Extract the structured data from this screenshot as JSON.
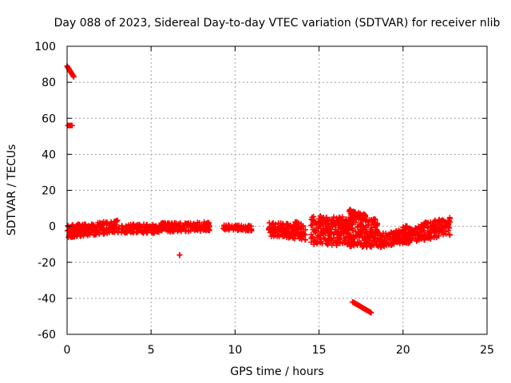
{
  "chart_data": {
    "type": "scatter",
    "title": "Day 088 of 2023, Sidereal Day-to-day VTEC variation (SDTVAR) for receiver nlib",
    "xlabel": "GPS time / hours",
    "ylabel": "SDTVAR / TECUs",
    "xlim": [
      0,
      25
    ],
    "ylim": [
      -60,
      100
    ],
    "xticks": [
      0,
      5,
      10,
      15,
      20,
      25
    ],
    "yticks": [
      -60,
      -40,
      -20,
      0,
      20,
      40,
      60,
      80,
      100
    ],
    "grid": true,
    "marker": "+",
    "color": "#ff0000",
    "clusters": [
      {
        "x": [
          0.0,
          0.4
        ],
        "y": [
          89,
          83
        ],
        "kind": "line"
      },
      {
        "x": [
          0.05,
          0.3
        ],
        "y": [
          56,
          56
        ],
        "kind": "line"
      },
      {
        "x": [
          0.0,
          3.0
        ],
        "y_center": [
          -3,
          0
        ],
        "spread": 3.5,
        "kind": "band"
      },
      {
        "x": [
          3.0,
          5.5
        ],
        "y_center": [
          -1,
          -1.5
        ],
        "spread": 2.5,
        "kind": "band"
      },
      {
        "x": [
          5.5,
          7.2
        ],
        "y_center": [
          -0.5,
          -0.5
        ],
        "spread": 2.5,
        "kind": "band"
      },
      {
        "x": [
          7.2,
          8.5
        ],
        "y_center": [
          -0.5,
          0
        ],
        "spread": 2.5,
        "kind": "band"
      },
      {
        "x": [
          9.3,
          11.0
        ],
        "y_center": [
          -0.5,
          -1
        ],
        "spread": 1.5,
        "kind": "band"
      },
      {
        "x": [
          12.0,
          13.5
        ],
        "y_center": [
          -2,
          -2.5
        ],
        "spread": 4,
        "kind": "band"
      },
      {
        "x": [
          13.5,
          14.2
        ],
        "y_center": [
          -2,
          -3
        ],
        "spread": 5,
        "kind": "band"
      },
      {
        "x": [
          14.5,
          17.0
        ],
        "y_center": [
          -2,
          -3
        ],
        "spread": 8,
        "kind": "band"
      },
      {
        "x": [
          16.5,
          18.5
        ],
        "y_center": [
          -3,
          -4
        ],
        "spread": 8,
        "kind": "band"
      },
      {
        "x": [
          16.8,
          17.8
        ],
        "y_center": [
          8,
          5
        ],
        "spread": 1.5,
        "kind": "band"
      },
      {
        "x": [
          18.5,
          20.5
        ],
        "y_center": [
          -8,
          -5
        ],
        "spread": 4,
        "kind": "band"
      },
      {
        "x": [
          20.0,
          22.8
        ],
        "y_center": [
          -5,
          0
        ],
        "spread": 5,
        "kind": "band"
      },
      {
        "x": [
          6.7,
          6.7
        ],
        "y": [
          -16,
          -16
        ],
        "kind": "line"
      },
      {
        "x": [
          17.0,
          18.1
        ],
        "y": [
          -42,
          -48
        ],
        "kind": "line"
      }
    ]
  }
}
